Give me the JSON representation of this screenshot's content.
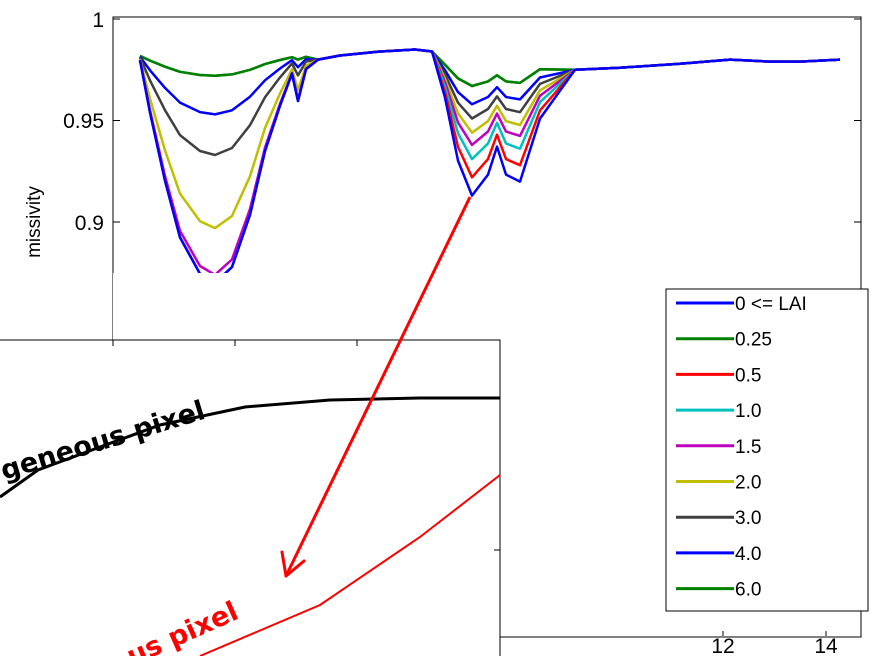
{
  "chart_data": [
    {
      "type": "line",
      "ylabel": "missivity",
      "ylim": [
        0.87,
        1.0
      ],
      "y_ticks": [
        "1",
        "0.95",
        "0.9"
      ],
      "x_ticks": [
        "12",
        "14"
      ],
      "legend_position": "bottom-right",
      "series": [
        {
          "name": "0 <= LAI",
          "color": "#0000ff",
          "min": 0.87,
          "dip2": 0.913
        },
        {
          "name": "0.25",
          "color": "#008000",
          "min": 0.972,
          "dip2": 0.967
        },
        {
          "name": "0.5",
          "color": "#ff0000",
          "min": 0.87,
          "dip2": 0.922
        },
        {
          "name": "1.0",
          "color": "#00bfbf",
          "min": 0.87,
          "dip2": 0.931
        },
        {
          "name": "1.5",
          "color": "#bf00bf",
          "min": 0.874,
          "dip2": 0.938
        },
        {
          "name": "2.0",
          "color": "#bfbf00",
          "min": 0.897,
          "dip2": 0.944
        },
        {
          "name": "3.0",
          "color": "#404040",
          "min": 0.933,
          "dip2": 0.951
        },
        {
          "name": "4.0",
          "color": "#0000ff",
          "min": 0.953,
          "dip2": 0.958
        },
        {
          "name": "6.0",
          "color": "#008000",
          "min": 0.972,
          "dip2": 0.967
        }
      ]
    },
    {
      "type": "line",
      "series": [
        {
          "name": "geneous pixel",
          "color": "#000000"
        },
        {
          "name": "us pixel",
          "color": "#ff0000"
        }
      ]
    }
  ],
  "colors": {
    "arrow": "#ff0000"
  }
}
